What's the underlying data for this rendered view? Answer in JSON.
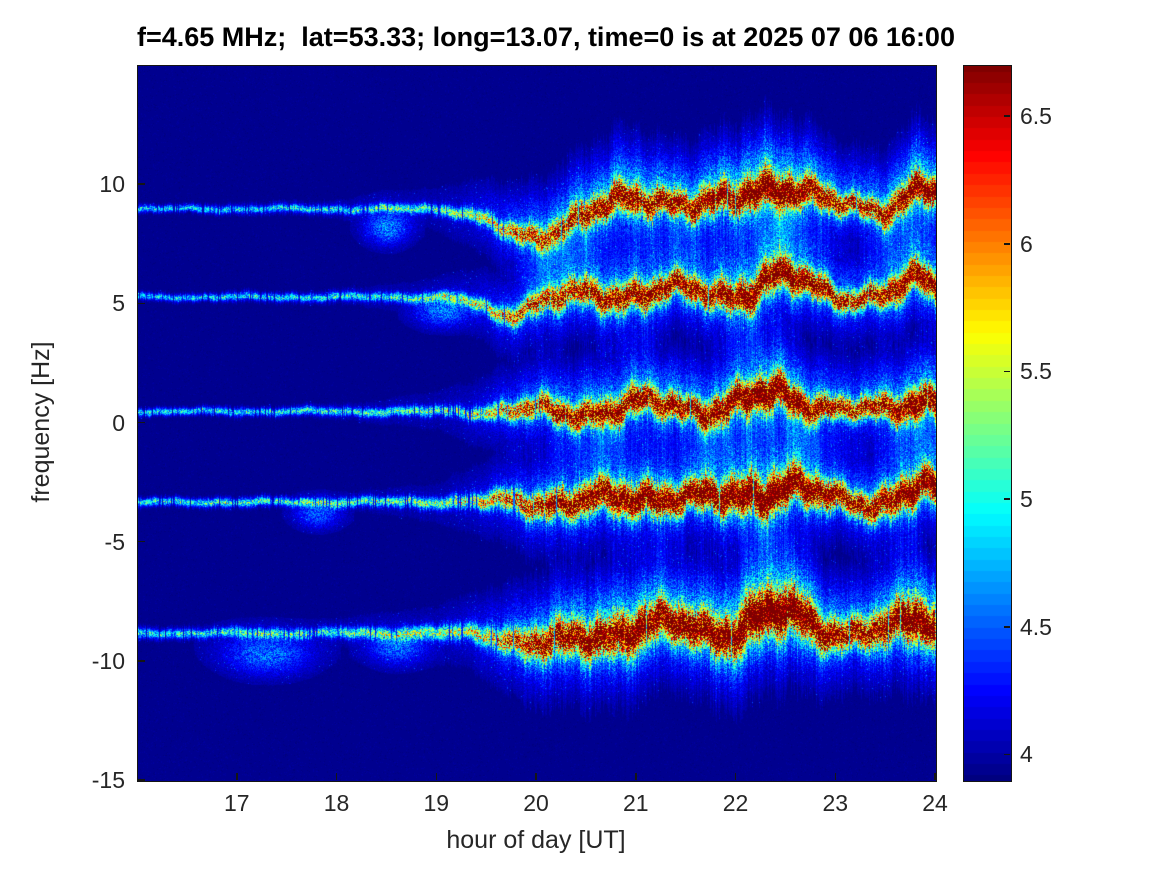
{
  "chart_data": {
    "type": "heatmap",
    "title": "f=4.65 MHz;  lat=53.33; long=13.07, time=0 is at 2025 07 06 16:00",
    "xlabel": "hour of day [UT]",
    "ylabel": "frequency [Hz]",
    "xlim": [
      16,
      24
    ],
    "ylim": [
      -15,
      15
    ],
    "xticks": [
      17,
      18,
      19,
      20,
      21,
      22,
      23,
      24
    ],
    "yticks": [
      10,
      5,
      0,
      -5,
      -10,
      -15
    ],
    "grid": false,
    "colormap": "jet",
    "background_color": "#00008c",
    "colorbar": {
      "min": 3.9,
      "max": 6.7,
      "ticks": [
        4,
        4.5,
        5,
        5.5,
        6,
        6.5
      ],
      "levels": 64,
      "position": "right"
    },
    "description": "Doppler spectrogram: five horizontal spectral traces at roughly 9.0, 5.3, 0.5, -3.3 and -8.8 Hz. Traces are narrow, faint cyan-green lines from 16:00 to ~19:30 UT, then broaden and intensify to orange/red mottled bands with blue-cyan diffuse halos from ~20:00 to 24:00 UT, with upward wavy excursions peaking near 22:30 and 23:50 UT.",
    "bands": [
      {
        "center": 9.0,
        "seed": 1,
        "amp": 0.95,
        "width_scale": 1.0,
        "halo_scale": 1.15,
        "bump": 1.25,
        "dip": {
          "t": 19.9,
          "depth": -1.25,
          "w": 0.3
        },
        "bursts": [
          {
            "t": 18.5,
            "df": -0.8,
            "wt": 0.15,
            "wf": 0.5,
            "a": 0.22
          }
        ]
      },
      {
        "center": 5.3,
        "seed": 2,
        "amp": 0.95,
        "width_scale": 1.0,
        "halo_scale": 1.0,
        "bump": 0.9,
        "dip": {
          "t": 19.65,
          "depth": -0.7,
          "w": 0.22
        },
        "bursts": [
          {
            "t": 19.05,
            "df": -0.6,
            "wt": 0.18,
            "wf": 0.45,
            "a": 0.2
          }
        ]
      },
      {
        "center": 0.5,
        "seed": 3,
        "amp": 1.0,
        "width_scale": 1.0,
        "halo_scale": 1.0,
        "bump": 0.85,
        "dip": null,
        "bursts": []
      },
      {
        "center": -3.3,
        "seed": 4,
        "amp": 1.1,
        "width_scale": 1.15,
        "halo_scale": 1.0,
        "bump": 0.8,
        "dip": null,
        "bursts": [
          {
            "t": 17.8,
            "df": -0.5,
            "wt": 0.15,
            "wf": 0.4,
            "a": 0.18
          }
        ]
      },
      {
        "center": -8.8,
        "seed": 5,
        "amp": 1.05,
        "width_scale": 1.35,
        "halo_scale": 1.3,
        "bump": 0.9,
        "dip": {
          "t": 20.1,
          "depth": -0.5,
          "w": 0.3
        },
        "bursts": [
          {
            "t": 17.3,
            "df": -0.9,
            "wt": 0.3,
            "wf": 0.6,
            "a": 0.2
          },
          {
            "t": 18.6,
            "df": -0.6,
            "wt": 0.2,
            "wf": 0.5,
            "a": 0.18
          }
        ]
      }
    ],
    "envelope": {
      "hours": [
        16,
        16.5,
        17,
        17.5,
        18,
        18.5,
        19,
        19.3,
        19.6,
        20,
        20.3,
        20.7,
        21,
        21.5,
        22,
        22.3,
        22.6,
        23,
        23.2,
        23.5,
        23.8,
        24
      ],
      "amplitude": [
        0.33,
        0.33,
        0.34,
        0.34,
        0.36,
        0.38,
        0.41,
        0.46,
        0.56,
        0.75,
        0.85,
        0.9,
        0.95,
        0.92,
        1.0,
        1.1,
        1.05,
        0.85,
        0.8,
        0.9,
        1.05,
        1.0
      ],
      "width": [
        0.09,
        0.09,
        0.1,
        0.1,
        0.11,
        0.12,
        0.14,
        0.17,
        0.22,
        0.3,
        0.33,
        0.36,
        0.36,
        0.33,
        0.38,
        0.42,
        0.38,
        0.3,
        0.28,
        0.33,
        0.38,
        0.34
      ],
      "halo": [
        0.04,
        0.04,
        0.05,
        0.05,
        0.06,
        0.08,
        0.1,
        0.18,
        0.35,
        0.6,
        0.7,
        0.75,
        0.8,
        0.7,
        0.9,
        1.0,
        0.9,
        0.6,
        0.55,
        0.7,
        0.9,
        0.8
      ]
    }
  }
}
